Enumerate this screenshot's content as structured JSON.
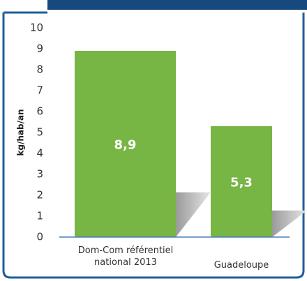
{
  "chart_data": {
    "type": "bar",
    "y_label": "kg/hab/an",
    "categories": [
      "Dom-Com référentiel national 2013",
      "Guadeloupe"
    ],
    "values": [
      8.9,
      5.3
    ],
    "value_labels": [
      "8,9",
      "5,3"
    ],
    "color": "#77b545",
    "ylim": [
      0,
      10
    ],
    "yticks": [
      0,
      1,
      2,
      3,
      4,
      5,
      6,
      7,
      8,
      9,
      10
    ]
  }
}
